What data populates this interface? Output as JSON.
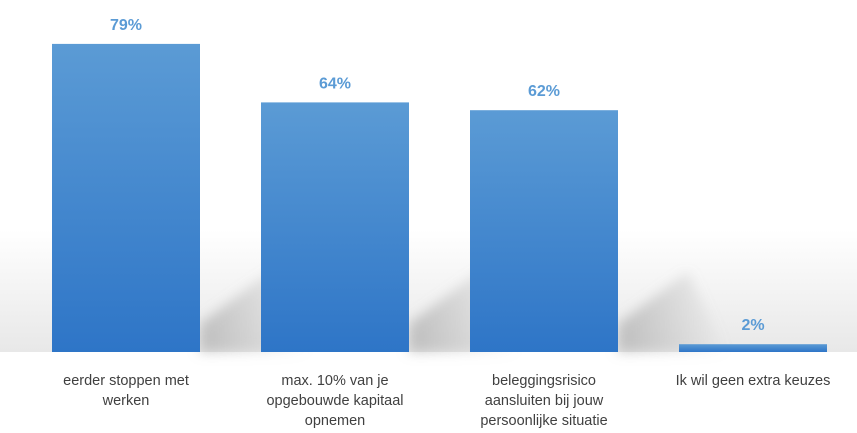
{
  "chart_data": {
    "type": "bar",
    "categories": [
      [
        "eerder stoppen met",
        "werken"
      ],
      [
        "max. 10% van je",
        "opgebouwde kapitaal",
        "opnemen"
      ],
      [
        "beleggingsrisico",
        "aansluiten bij jouw",
        "persoonlijke situatie"
      ],
      [
        "Ik wil geen extra keuzes"
      ]
    ],
    "values": [
      79,
      64,
      62,
      2
    ],
    "data_labels": [
      "79%",
      "64%",
      "62%",
      "2%"
    ],
    "ylim": [
      0,
      100
    ],
    "grid": false,
    "legend": "none",
    "colors": {
      "bar_top": "#5b9bd5",
      "bar_bottom": "#2e75c7",
      "label": "#5b9bd5",
      "axis_text": "#404040"
    }
  }
}
